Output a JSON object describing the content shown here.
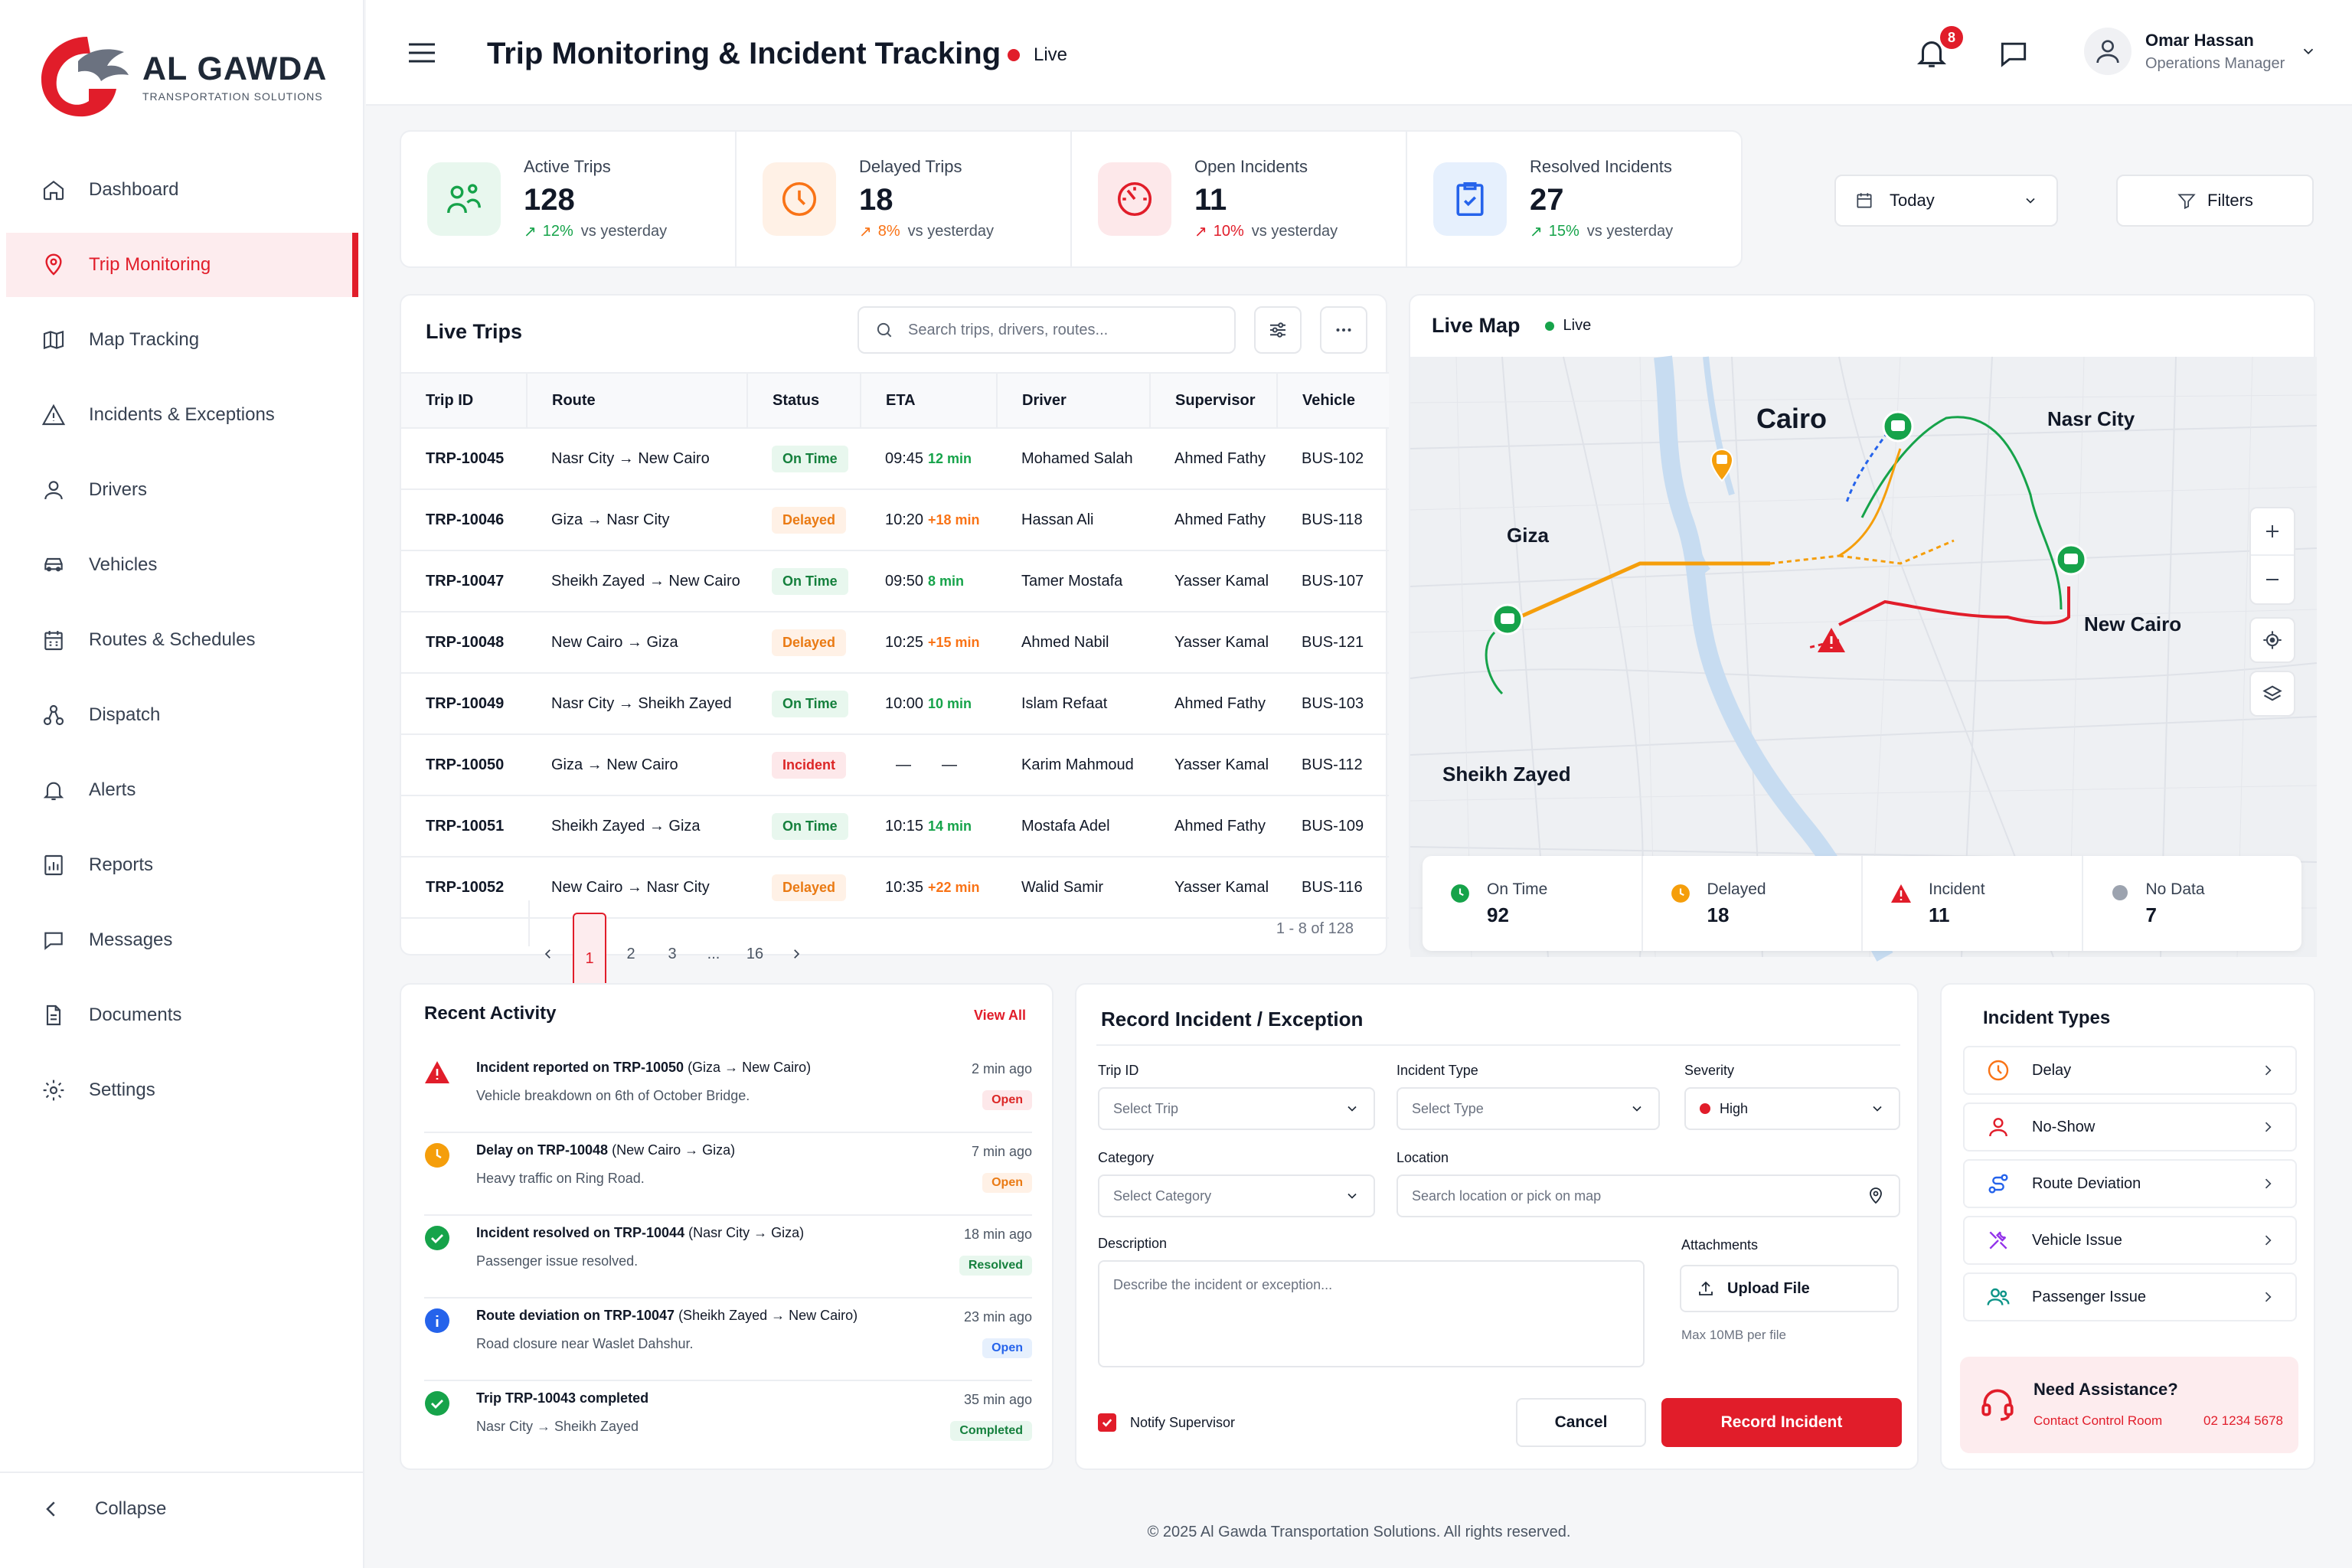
{
  "brand": {
    "name": "AL GAWDA",
    "tagline": "Transportation Solutions",
    "accent": "#e11d2a"
  },
  "sidebar": {
    "items": [
      {
        "label": "Dashboard",
        "icon": "home-icon"
      },
      {
        "label": "Trip Monitoring",
        "icon": "map-pin-icon",
        "active": true
      },
      {
        "label": "Map Tracking",
        "icon": "map-icon"
      },
      {
        "label": "Incidents & Exceptions",
        "icon": "warning-icon"
      },
      {
        "label": "Drivers",
        "icon": "user-icon"
      },
      {
        "label": "Vehicles",
        "icon": "car-icon"
      },
      {
        "label": "Routes & Schedules",
        "icon": "calendar-icon"
      },
      {
        "label": "Dispatch",
        "icon": "dispatch-icon"
      },
      {
        "label": "Alerts",
        "icon": "bell-icon"
      },
      {
        "label": "Reports",
        "icon": "report-icon"
      },
      {
        "label": "Messages",
        "icon": "message-icon"
      },
      {
        "label": "Documents",
        "icon": "document-icon"
      },
      {
        "label": "Settings",
        "icon": "gear-icon"
      }
    ],
    "collapse_label": "Collapse"
  },
  "header": {
    "title": "Trip Monitoring & Incident Tracking",
    "live_label": "Live",
    "notifications_count": "8",
    "user_name": "Omar Hassan",
    "user_role": "Operations Manager"
  },
  "kpis": [
    {
      "label": "Active Trips",
      "value": "128",
      "delta": "12%",
      "suffix": "vs yesterday",
      "color": "#16a34a"
    },
    {
      "label": "Delayed Trips",
      "value": "18",
      "delta": "8%",
      "suffix": "vs yesterday",
      "color": "#f97316"
    },
    {
      "label": "Open Incidents",
      "value": "11",
      "delta": "10%",
      "suffix": "vs yesterday",
      "color": "#e11d2a"
    },
    {
      "label": "Resolved Incidents",
      "value": "27",
      "delta": "15%",
      "suffix": "vs yesterday",
      "color": "#16a34a"
    }
  ],
  "controls": {
    "date_label": "Today",
    "filters_label": "Filters"
  },
  "live_trips": {
    "title": "Live Trips",
    "search_placeholder": "Search trips, drivers, routes...",
    "columns": [
      "Trip ID",
      "Route",
      "Status",
      "ETA",
      "Driver",
      "Supervisor",
      "Vehicle"
    ],
    "rows": [
      {
        "id": "TRP-10045",
        "route": "Nasr City → New Cairo",
        "status": "On Time",
        "eta": "09:45",
        "delay": "12 min",
        "driver": "Mohamed Salah",
        "supervisor": "Ahmed Fathy",
        "vehicle": "BUS-102"
      },
      {
        "id": "TRP-10046",
        "route": "Giza → Nasr City",
        "status": "Delayed",
        "eta": "10:20",
        "delay": "+18 min",
        "driver": "Hassan Ali",
        "supervisor": "Ahmed Fathy",
        "vehicle": "BUS-118"
      },
      {
        "id": "TRP-10047",
        "route": "Sheikh Zayed → New Cairo",
        "status": "On Time",
        "eta": "09:50",
        "delay": "8 min",
        "driver": "Tamer Mostafa",
        "supervisor": "Yasser Kamal",
        "vehicle": "BUS-107"
      },
      {
        "id": "TRP-10048",
        "route": "New Cairo → Giza",
        "status": "Delayed",
        "eta": "10:25",
        "delay": "+15 min",
        "driver": "Ahmed Nabil",
        "supervisor": "Yasser Kamal",
        "vehicle": "BUS-121"
      },
      {
        "id": "TRP-10049",
        "route": "Nasr City → Sheikh Zayed",
        "status": "On Time",
        "eta": "10:00",
        "delay": "10 min",
        "driver": "Islam Refaat",
        "supervisor": "Ahmed Fathy",
        "vehicle": "BUS-103"
      },
      {
        "id": "TRP-10050",
        "route": "Giza → New Cairo",
        "status": "Incident",
        "eta": "—",
        "delay": "—",
        "driver": "Karim Mahmoud",
        "supervisor": "Yasser Kamal",
        "vehicle": "BUS-112"
      },
      {
        "id": "TRP-10051",
        "route": "Sheikh Zayed → Giza",
        "status": "On Time",
        "eta": "10:15",
        "delay": "14 min",
        "driver": "Mostafa Adel",
        "supervisor": "Ahmed Fathy",
        "vehicle": "BUS-109"
      },
      {
        "id": "TRP-10052",
        "route": "New Cairo → Nasr City",
        "status": "Delayed",
        "eta": "10:35",
        "delay": "+22 min",
        "driver": "Walid Samir",
        "supervisor": "Yasser Kamal",
        "vehicle": "BUS-116"
      }
    ],
    "pages": [
      "1",
      "2",
      "3",
      "...",
      "16"
    ],
    "range": "1 - 8 of 128"
  },
  "live_map": {
    "title": "Live Map",
    "live_label": "Live",
    "cities": [
      "Cairo",
      "Nasr City",
      "Giza",
      "New Cairo",
      "Sheikh Zayed"
    ],
    "legend": [
      {
        "label": "On Time",
        "value": "92",
        "color": "#16a34a"
      },
      {
        "label": "Delayed",
        "value": "18",
        "color": "#f59e0b"
      },
      {
        "label": "Incident",
        "value": "11",
        "color": "#e11d2a"
      },
      {
        "label": "No Data",
        "value": "7",
        "color": "#9ca3af"
      }
    ]
  },
  "recent_activity": {
    "title": "Recent Activity",
    "view_all": "View All",
    "items": [
      {
        "bold": "Incident reported on TRP-10050",
        "rest": " (Giza → New Cairo)",
        "sub": "Vehicle breakdown on 6th of October Bridge.",
        "time": "2 min ago",
        "badge": "Open",
        "icon": "warning-icon"
      },
      {
        "bold": "Delay on TRP-10048",
        "rest": " (New Cairo → Giza)",
        "sub": "Heavy traffic on Ring Road.",
        "time": "7 min ago",
        "badge": "Open",
        "icon": "clock-icon"
      },
      {
        "bold": "Incident resolved on TRP-10044",
        "rest": " (Nasr City → Giza)",
        "sub": "Passenger issue resolved.",
        "time": "18 min ago",
        "badge": "Resolved",
        "icon": "check-circle-icon"
      },
      {
        "bold": "Route deviation on TRP-10047",
        "rest": " (Sheikh Zayed → New Cairo)",
        "sub": "Road closure near Waslet Dahshur.",
        "time": "23 min ago",
        "badge": "Open",
        "icon": "info-icon"
      },
      {
        "bold": "Trip TRP-10043 completed",
        "rest": "",
        "sub": "Nasr City → Sheikh Zayed",
        "time": "35 min ago",
        "badge": "Completed",
        "icon": "check-circle-icon"
      }
    ]
  },
  "record_incident": {
    "title": "Record Incident / Exception",
    "trip_id_label": "Trip ID",
    "trip_id_placeholder": "Select Trip",
    "type_label": "Incident Type",
    "type_placeholder": "Select Type",
    "severity_label": "Severity",
    "severity_value": "High",
    "category_label": "Category",
    "category_placeholder": "Select Category",
    "location_label": "Location",
    "location_placeholder": "Search location or pick on map",
    "description_label": "Description",
    "description_placeholder": "Describe the incident or exception...",
    "attachments_label": "Attachments",
    "upload_label": "Upload File",
    "max_size": "Max 10MB per file",
    "notify_label": "Notify Supervisor",
    "cancel_label": "Cancel",
    "submit_label": "Record Incident"
  },
  "incident_types": {
    "title": "Incident Types",
    "items": [
      {
        "label": "Delay",
        "icon": "clock-icon"
      },
      {
        "label": "No-Show",
        "icon": "user-icon"
      },
      {
        "label": "Route Deviation",
        "icon": "route-icon"
      },
      {
        "label": "Vehicle Issue",
        "icon": "wrench-icon"
      },
      {
        "label": "Passenger Issue",
        "icon": "users-icon"
      }
    ],
    "assist_title": "Need Assistance?",
    "assist_link": "Contact Control Room",
    "assist_phone": "02 1234 5678"
  },
  "footer": "© 2025 Al Gawda Transportation Solutions. All rights reserved."
}
